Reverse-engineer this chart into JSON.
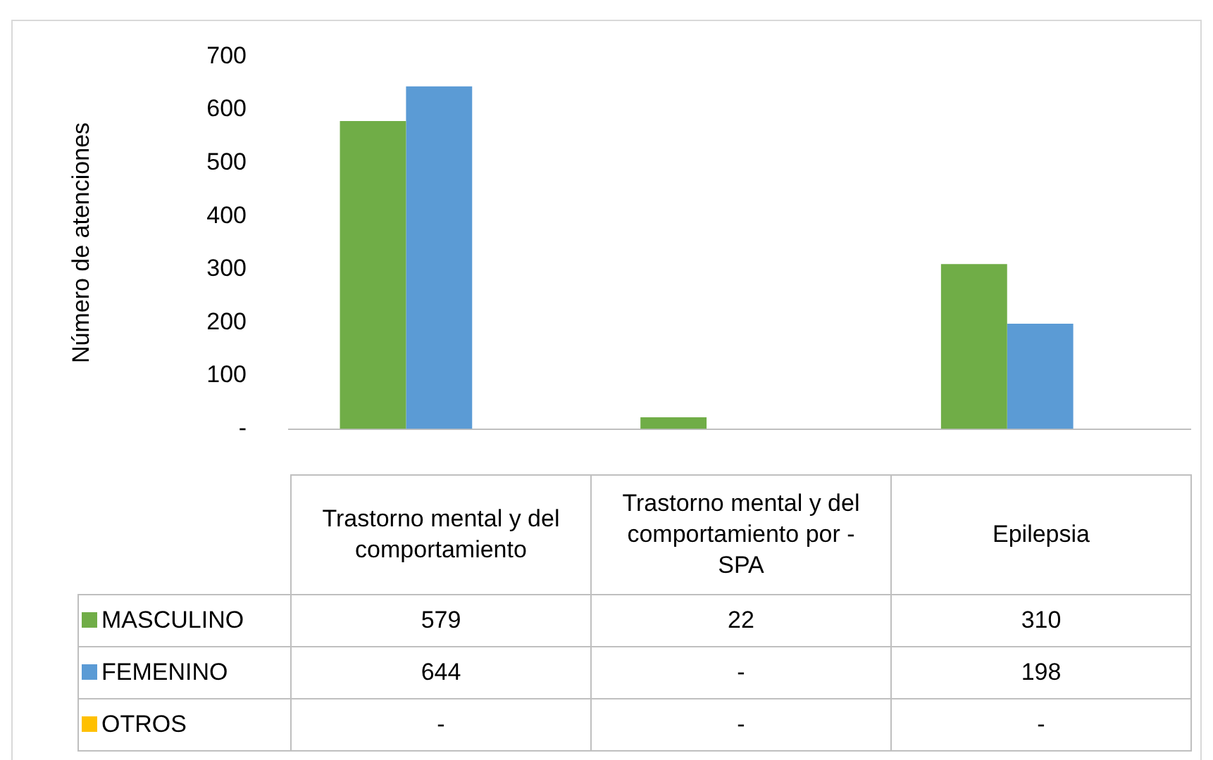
{
  "chart_data": {
    "type": "bar",
    "ylabel": "Número de atenciones",
    "categories": [
      "Trastorno mental y del comportamiento",
      "Trastorno mental y del comportamiento por  - SPA",
      "Epilepsia"
    ],
    "series": [
      {
        "name": "MASCULINO",
        "color": "#70ad47",
        "values": [
          579,
          22,
          310
        ],
        "value_labels": [
          "579",
          "22",
          "310"
        ]
      },
      {
        "name": "FEMENINO",
        "color": "#5b9bd5",
        "values": [
          644,
          null,
          198
        ],
        "value_labels": [
          "644",
          "-",
          "198"
        ]
      },
      {
        "name": "OTROS",
        "color": "#ffc000",
        "values": [
          null,
          null,
          null
        ],
        "value_labels": [
          "-",
          "-",
          "-"
        ]
      }
    ],
    "ylim": [
      0,
      700
    ],
    "yticks": [
      {
        "value": 0,
        "label": "-"
      },
      100,
      200,
      300,
      400,
      500,
      600,
      700
    ],
    "grid": false,
    "legend": "bottom"
  }
}
